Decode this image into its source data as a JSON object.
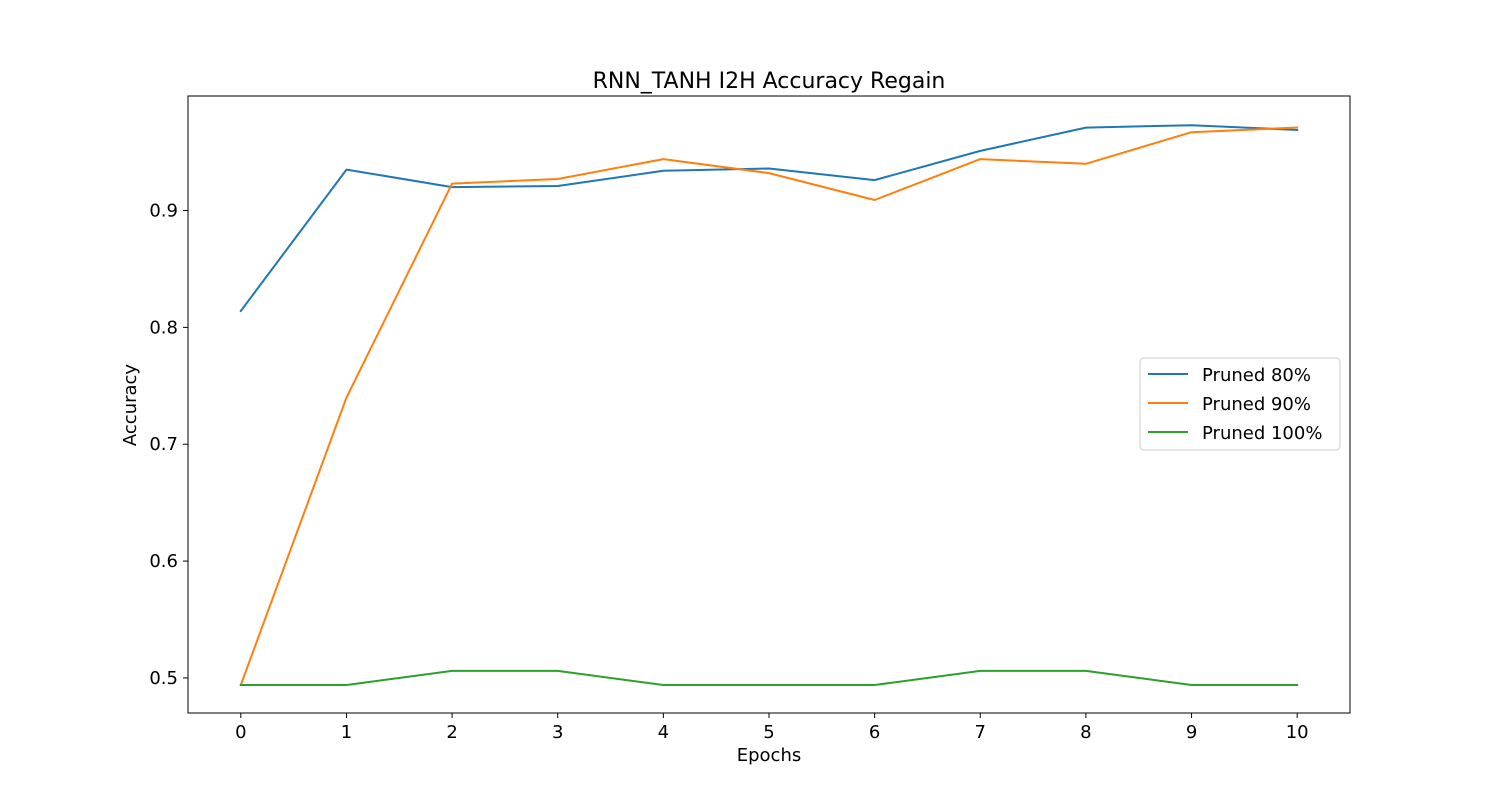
{
  "chart_data": {
    "type": "line",
    "title": "RNN_TANH I2H Accuracy Regain",
    "xlabel": "Epochs",
    "ylabel": "Accuracy",
    "x": [
      0,
      1,
      2,
      3,
      4,
      5,
      6,
      7,
      8,
      9,
      10
    ],
    "xticks": [
      "0",
      "1",
      "2",
      "3",
      "4",
      "5",
      "6",
      "7",
      "8",
      "9",
      "10"
    ],
    "yticks": [
      "0.5",
      "0.6",
      "0.7",
      "0.8",
      "0.9"
    ],
    "ytick_values": [
      0.5,
      0.6,
      0.7,
      0.8,
      0.9
    ],
    "xlim": [
      -0.5,
      10.5
    ],
    "ylim": [
      0.47,
      0.998
    ],
    "grid": false,
    "legend_position": "center-right",
    "series": [
      {
        "name": "Pruned 80%",
        "color": "#1f77b4",
        "values": [
          0.814,
          0.935,
          0.92,
          0.921,
          0.934,
          0.936,
          0.926,
          0.951,
          0.971,
          0.973,
          0.969
        ]
      },
      {
        "name": "Pruned 90%",
        "color": "#ff7f0e",
        "values": [
          0.494,
          0.74,
          0.923,
          0.927,
          0.944,
          0.932,
          0.909,
          0.944,
          0.94,
          0.967,
          0.971
        ]
      },
      {
        "name": "Pruned 100%",
        "color": "#2ca02c",
        "values": [
          0.494,
          0.494,
          0.506,
          0.506,
          0.494,
          0.494,
          0.494,
          0.506,
          0.506,
          0.494,
          0.494
        ]
      }
    ]
  }
}
